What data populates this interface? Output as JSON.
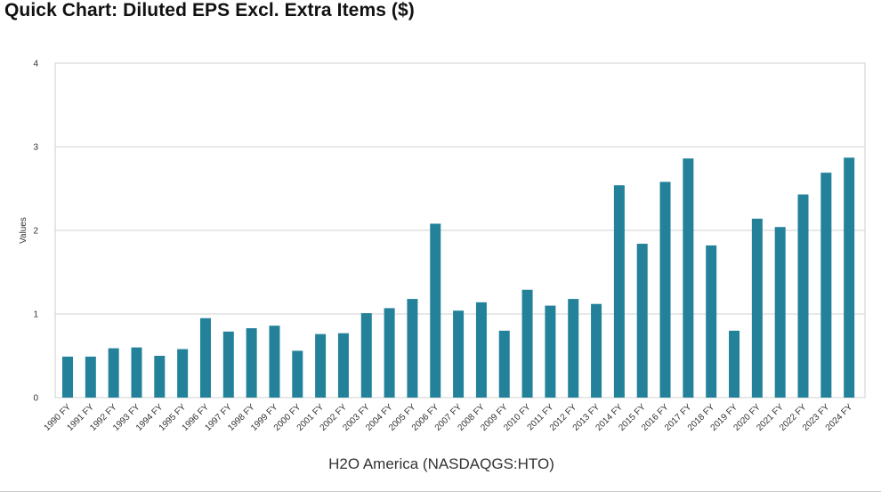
{
  "chart_data": {
    "type": "bar",
    "title": "Quick Chart: Diluted EPS Excl. Extra Items ($)",
    "xlabel": "H2O America (NASDAQGS:HTO)",
    "ylabel": "Values",
    "ylim": [
      0,
      4
    ],
    "yticks": [
      "0",
      "1",
      "2",
      "3",
      "4"
    ],
    "grid": true,
    "bar_color": "#23829a",
    "categories": [
      "1990 FY",
      "1991 FY",
      "1992 FY",
      "1993 FY",
      "1994 FY",
      "1995 FY",
      "1996 FY",
      "1997 FY",
      "1998 FY",
      "1999 FY",
      "2000 FY",
      "2001 FY",
      "2002 FY",
      "2003 FY",
      "2004 FY",
      "2005 FY",
      "2006 FY",
      "2007 FY",
      "2008 FY",
      "2009 FY",
      "2010 FY",
      "2011 FY",
      "2012 FY",
      "2013 FY",
      "2014 FY",
      "2015 FY",
      "2016 FY",
      "2017 FY",
      "2018 FY",
      "2019 FY",
      "2020 FY",
      "2021 FY",
      "2022 FY",
      "2023 FY",
      "2024 FY"
    ],
    "values": [
      0.49,
      0.49,
      0.59,
      0.6,
      0.5,
      0.58,
      0.95,
      0.79,
      0.83,
      0.86,
      0.56,
      0.76,
      0.77,
      1.01,
      1.07,
      1.18,
      2.08,
      1.04,
      1.14,
      0.8,
      1.29,
      1.1,
      1.18,
      1.12,
      2.54,
      1.84,
      2.58,
      2.86,
      1.82,
      0.8,
      2.14,
      2.04,
      2.43,
      2.69,
      2.87
    ]
  }
}
